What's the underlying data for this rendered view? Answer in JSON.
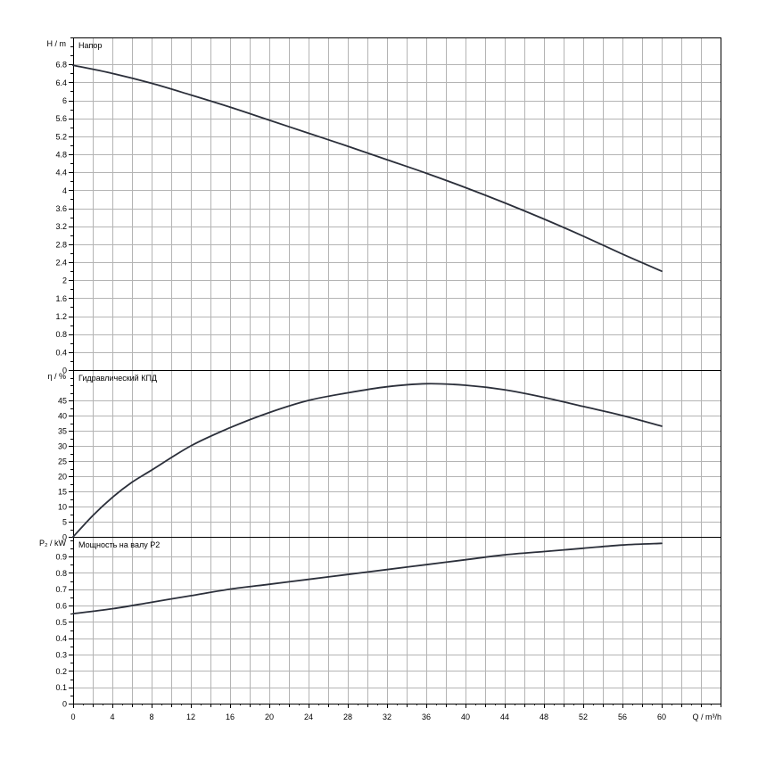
{
  "chart_data": [
    {
      "type": "line",
      "panel_label": "Напор",
      "ylabel": "H / m",
      "ylim": [
        0,
        7.4
      ],
      "yticks": [
        0,
        0.4,
        0.8,
        1.2,
        1.6,
        2,
        2.4,
        2.8,
        3.2,
        3.6,
        4,
        4.4,
        4.8,
        5.2,
        5.6,
        6,
        6.4,
        6.8
      ],
      "series": [
        {
          "x": [
            0,
            4,
            8,
            12,
            16,
            20,
            24,
            28,
            32,
            36,
            40,
            44,
            48,
            52,
            56,
            60
          ],
          "y": [
            6.78,
            6.6,
            6.38,
            6.12,
            5.85,
            5.56,
            5.27,
            4.98,
            4.68,
            4.38,
            4.06,
            3.72,
            3.36,
            2.98,
            2.58,
            2.2
          ]
        }
      ]
    },
    {
      "type": "line",
      "panel_label": "Гидравлический КПД",
      "ylabel": "η / %",
      "ylim": [
        0,
        55
      ],
      "yticks": [
        0,
        5,
        10,
        15,
        20,
        25,
        30,
        35,
        40,
        45
      ],
      "series": [
        {
          "x": [
            0,
            2,
            4,
            6,
            8,
            12,
            16,
            20,
            24,
            28,
            32,
            36,
            40,
            44,
            48,
            52,
            56,
            60
          ],
          "y": [
            0,
            7,
            13,
            18,
            22,
            30,
            36,
            41,
            45,
            47.5,
            49.5,
            50.5,
            50,
            48.5,
            46,
            43,
            40,
            36.5
          ]
        }
      ]
    },
    {
      "type": "line",
      "panel_label": "Мощность на валу P2",
      "ylabel": "P₂ / kW",
      "ylim": [
        0,
        1.02
      ],
      "yticks": [
        0,
        0.1,
        0.2,
        0.3,
        0.4,
        0.5,
        0.6,
        0.7,
        0.8,
        0.9
      ],
      "series": [
        {
          "x": [
            0,
            4,
            8,
            12,
            16,
            20,
            24,
            28,
            32,
            36,
            40,
            44,
            48,
            52,
            56,
            60
          ],
          "y": [
            0.55,
            0.58,
            0.62,
            0.66,
            0.7,
            0.73,
            0.76,
            0.79,
            0.82,
            0.85,
            0.88,
            0.91,
            0.93,
            0.95,
            0.97,
            0.98
          ]
        }
      ]
    }
  ],
  "x_axis": {
    "label": "Q / m³/h",
    "xlim": [
      0,
      66
    ],
    "ticks": [
      0,
      4,
      8,
      12,
      16,
      20,
      24,
      28,
      32,
      36,
      40,
      44,
      48,
      52,
      56,
      60
    ]
  },
  "grid": true
}
